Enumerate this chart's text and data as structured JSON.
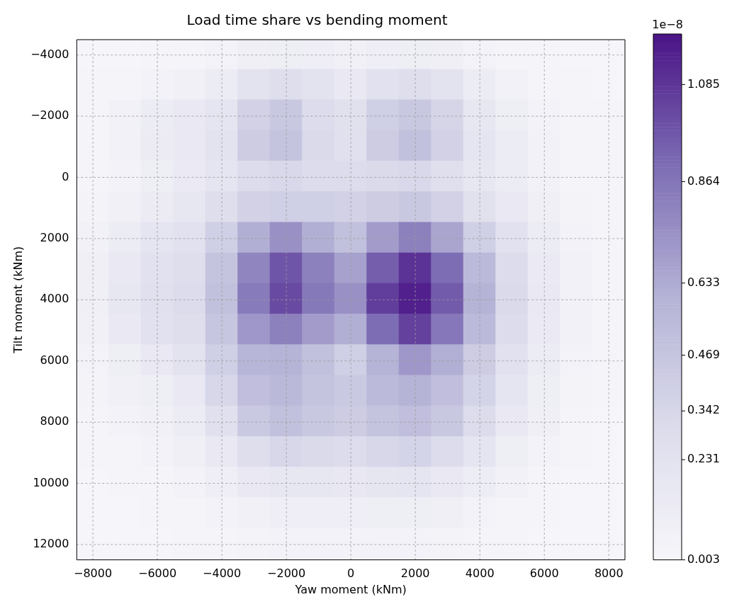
{
  "chart_data": {
    "type": "heatmap",
    "title": "Load time share vs bending moment",
    "xlabel": "Yaw moment (kNm)",
    "ylabel": "Tilt moment (kNm)",
    "clabel": "1e−8",
    "categories": [
      "−8000",
      null,
      "−6000",
      null,
      "−4000",
      null,
      "−2000",
      null,
      "0",
      null,
      "2000",
      null,
      "4000",
      null,
      "6000",
      null,
      "8000"
    ],
    "y_categories": [
      "−4000",
      null,
      "−2000",
      null,
      "0",
      null,
      "2000",
      null,
      "4000",
      null,
      "6000",
      null,
      "8000",
      null,
      "10000",
      null,
      "12000"
    ],
    "cells": [
      [
        0.01,
        0.01,
        0.02,
        0.03,
        0.05,
        0.08,
        0.1,
        0.09,
        0.07,
        0.09,
        0.1,
        0.08,
        0.05,
        0.03,
        0.02,
        0.01,
        0.01
      ],
      [
        0.02,
        0.03,
        0.05,
        0.07,
        0.12,
        0.22,
        0.28,
        0.22,
        0.16,
        0.24,
        0.28,
        0.22,
        0.12,
        0.06,
        0.03,
        0.02,
        0.01
      ],
      [
        0.03,
        0.06,
        0.12,
        0.15,
        0.2,
        0.38,
        0.45,
        0.3,
        0.25,
        0.4,
        0.45,
        0.35,
        0.18,
        0.1,
        0.05,
        0.03,
        0.02
      ],
      [
        0.03,
        0.06,
        0.13,
        0.16,
        0.22,
        0.42,
        0.48,
        0.32,
        0.26,
        0.42,
        0.5,
        0.38,
        0.2,
        0.12,
        0.06,
        0.03,
        0.02
      ],
      [
        0.03,
        0.05,
        0.1,
        0.14,
        0.2,
        0.3,
        0.33,
        0.3,
        0.3,
        0.32,
        0.33,
        0.27,
        0.18,
        0.12,
        0.06,
        0.03,
        0.02
      ],
      [
        0.04,
        0.07,
        0.13,
        0.18,
        0.28,
        0.38,
        0.4,
        0.4,
        0.38,
        0.42,
        0.45,
        0.38,
        0.25,
        0.16,
        0.08,
        0.04,
        0.02
      ],
      [
        0.06,
        0.12,
        0.2,
        0.24,
        0.4,
        0.62,
        0.75,
        0.62,
        0.5,
        0.7,
        0.82,
        0.66,
        0.4,
        0.24,
        0.12,
        0.05,
        0.02
      ],
      [
        0.08,
        0.16,
        0.24,
        0.28,
        0.48,
        0.8,
        0.98,
        0.82,
        0.68,
        0.95,
        1.1,
        0.9,
        0.55,
        0.3,
        0.14,
        0.06,
        0.03
      ],
      [
        0.08,
        0.18,
        0.26,
        0.3,
        0.5,
        0.84,
        1.02,
        0.85,
        0.75,
        1.06,
        1.16,
        0.96,
        0.6,
        0.32,
        0.15,
        0.06,
        0.03
      ],
      [
        0.07,
        0.15,
        0.24,
        0.28,
        0.46,
        0.72,
        0.82,
        0.7,
        0.62,
        0.9,
        1.05,
        0.86,
        0.55,
        0.3,
        0.14,
        0.06,
        0.03
      ],
      [
        0.05,
        0.1,
        0.16,
        0.22,
        0.4,
        0.58,
        0.6,
        0.5,
        0.4,
        0.6,
        0.72,
        0.62,
        0.42,
        0.24,
        0.12,
        0.05,
        0.02
      ],
      [
        0.04,
        0.07,
        0.1,
        0.16,
        0.34,
        0.52,
        0.56,
        0.48,
        0.44,
        0.55,
        0.6,
        0.52,
        0.36,
        0.2,
        0.1,
        0.04,
        0.02
      ],
      [
        0.03,
        0.05,
        0.07,
        0.12,
        0.26,
        0.44,
        0.5,
        0.45,
        0.42,
        0.48,
        0.52,
        0.45,
        0.3,
        0.16,
        0.08,
        0.03,
        0.01
      ],
      [
        0.02,
        0.03,
        0.05,
        0.08,
        0.16,
        0.28,
        0.34,
        0.32,
        0.3,
        0.34,
        0.36,
        0.3,
        0.2,
        0.1,
        0.05,
        0.02,
        0.01
      ],
      [
        0.01,
        0.02,
        0.03,
        0.05,
        0.09,
        0.15,
        0.18,
        0.18,
        0.17,
        0.19,
        0.2,
        0.16,
        0.11,
        0.06,
        0.03,
        0.01,
        0.01
      ],
      [
        0.01,
        0.01,
        0.02,
        0.03,
        0.05,
        0.07,
        0.09,
        0.09,
        0.09,
        0.1,
        0.1,
        0.08,
        0.05,
        0.03,
        0.02,
        0.01,
        0.01
      ],
      [
        0.01,
        0.01,
        0.01,
        0.02,
        0.03,
        0.04,
        0.05,
        0.05,
        0.05,
        0.05,
        0.05,
        0.04,
        0.03,
        0.02,
        0.01,
        0.01,
        0.01
      ]
    ],
    "clim": [
      0.003,
      1.2
    ],
    "cticks": [
      0.003,
      0.231,
      0.342,
      0.469,
      0.633,
      0.864,
      1.085
    ],
    "grid": true
  }
}
